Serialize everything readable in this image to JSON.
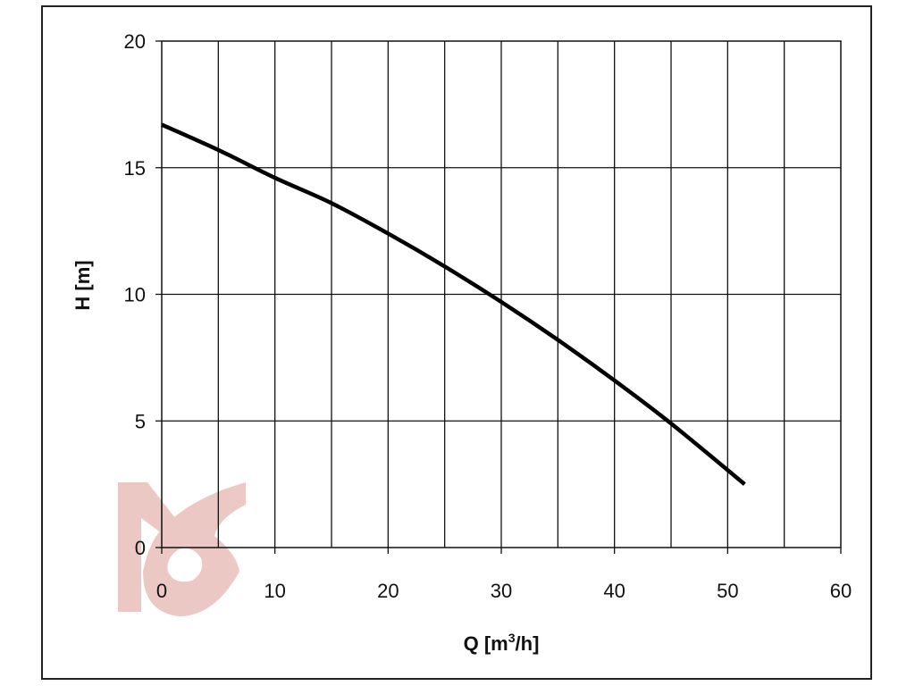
{
  "chart_data": {
    "type": "line",
    "title": "",
    "xlabel": {
      "prefix": "Q [m",
      "sup": "3",
      "suffix": "/h]"
    },
    "ylabel": "H [m]",
    "xlim": [
      0,
      60
    ],
    "ylim": [
      0,
      20
    ],
    "x_ticks": [
      0,
      10,
      20,
      30,
      40,
      50,
      60
    ],
    "x_tick_labels": [
      "0",
      "10",
      "20",
      "30",
      "40",
      "50",
      "60"
    ],
    "y_ticks": [
      0,
      5,
      10,
      15,
      20
    ],
    "y_tick_labels": [
      "0",
      "5",
      "10",
      "15",
      "20"
    ],
    "x_minor_gridlines": [
      5,
      15,
      25,
      35,
      45,
      55
    ],
    "grid": true,
    "legend": "none",
    "series": [
      {
        "color": "#000000",
        "x": [
          0,
          5,
          10,
          15,
          20,
          25,
          30,
          35,
          40,
          45,
          51.5
        ],
        "y": [
          16.7,
          15.7,
          14.6,
          13.6,
          12.4,
          11.1,
          9.7,
          8.2,
          6.6,
          4.9,
          2.5
        ]
      }
    ]
  },
  "watermark": {
    "color": "#c8645a"
  }
}
